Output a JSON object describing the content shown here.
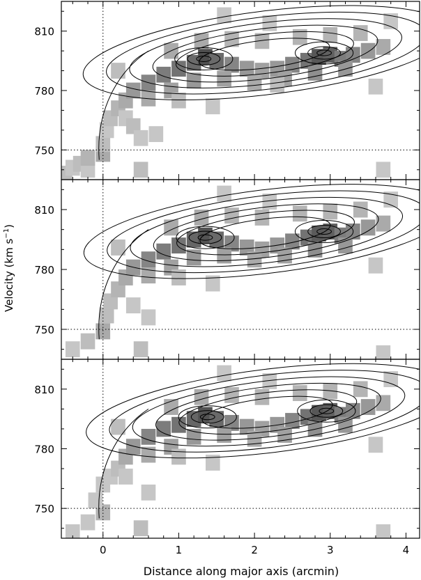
{
  "chart_data": {
    "type": "heatmap",
    "shared_xlabel": "Distance along major axis (arcmin)",
    "shared_ylabel_main": "Velocity (km s",
    "shared_ylabel_sup": "−1",
    "shared_ylabel_close": ")",
    "xlim": [
      -0.55,
      4.18
    ],
    "ylim": [
      735,
      825
    ],
    "x_ticks": [
      0,
      1,
      2,
      3,
      4
    ],
    "x_tick_labels": [
      "0",
      "1",
      "2",
      "3",
      "4"
    ],
    "y_ticks": [
      750,
      780,
      810
    ],
    "y_tick_labels": [
      "750",
      "780",
      "810"
    ],
    "reference_lines": {
      "x": 0,
      "y": 750,
      "style": "dotted"
    },
    "panels": [
      {
        "name": "panel-top",
        "pixels": [
          [
            -0.5,
            738,
            0.25
          ],
          [
            -0.4,
            741,
            0.2
          ],
          [
            -0.3,
            743,
            0.25
          ],
          [
            -0.2,
            740,
            0.2
          ],
          [
            -0.2,
            746,
            0.3
          ],
          [
            0.0,
            748,
            0.35
          ],
          [
            0.0,
            753,
            0.25
          ],
          [
            0.05,
            760,
            0.2
          ],
          [
            0.1,
            766,
            0.25
          ],
          [
            0.2,
            771,
            0.3
          ],
          [
            0.3,
            766,
            0.2
          ],
          [
            0.4,
            762,
            0.25
          ],
          [
            0.5,
            756,
            0.2
          ],
          [
            0.5,
            740,
            0.25
          ],
          [
            0.7,
            758,
            0.2
          ],
          [
            0.3,
            775,
            0.35
          ],
          [
            0.4,
            780,
            0.45
          ],
          [
            0.6,
            784,
            0.55
          ],
          [
            0.8,
            788,
            0.6
          ],
          [
            1.0,
            791,
            0.65
          ],
          [
            1.2,
            794,
            0.7
          ],
          [
            1.35,
            797,
            0.85
          ],
          [
            1.5,
            795,
            0.7
          ],
          [
            1.7,
            793,
            0.55
          ],
          [
            1.9,
            791,
            0.45
          ],
          [
            2.1,
            790,
            0.4
          ],
          [
            2.3,
            791,
            0.45
          ],
          [
            2.5,
            793,
            0.55
          ],
          [
            2.7,
            795,
            0.65
          ],
          [
            2.85,
            797,
            0.8
          ],
          [
            3.0,
            798,
            0.75
          ],
          [
            3.15,
            796,
            0.6
          ],
          [
            3.3,
            798,
            0.55
          ],
          [
            3.5,
            800,
            0.45
          ],
          [
            3.7,
            802,
            0.35
          ],
          [
            0.6,
            776,
            0.35
          ],
          [
            0.9,
            780,
            0.4
          ],
          [
            1.2,
            785,
            0.45
          ],
          [
            1.6,
            786,
            0.4
          ],
          [
            2.0,
            784,
            0.35
          ],
          [
            2.4,
            786,
            0.4
          ],
          [
            2.8,
            789,
            0.5
          ],
          [
            3.2,
            791,
            0.45
          ],
          [
            0.9,
            800,
            0.35
          ],
          [
            1.3,
            805,
            0.35
          ],
          [
            1.7,
            806,
            0.3
          ],
          [
            2.1,
            805,
            0.3
          ],
          [
            2.6,
            807,
            0.3
          ],
          [
            3.0,
            808,
            0.3
          ],
          [
            3.4,
            809,
            0.3
          ],
          [
            3.8,
            815,
            0.2
          ],
          [
            3.6,
            782,
            0.2
          ],
          [
            1.6,
            818,
            0.2
          ],
          [
            2.3,
            783,
            0.25
          ],
          [
            1.0,
            775,
            0.25
          ],
          [
            1.45,
            772,
            0.2
          ],
          [
            3.7,
            740,
            0.2
          ],
          [
            2.2,
            814,
            0.2
          ],
          [
            0.2,
            790,
            0.25
          ]
        ],
        "contour_levels": [
          1,
          2,
          3,
          4,
          5,
          6
        ],
        "peaks": [
          {
            "x": 1.33,
            "y": 796,
            "label": "peak-1"
          },
          {
            "x": 2.92,
            "y": 799,
            "label": "peak-2"
          }
        ]
      },
      {
        "name": "panel-middle",
        "pixels": [
          [
            -0.4,
            740,
            0.2
          ],
          [
            -0.2,
            744,
            0.25
          ],
          [
            0.0,
            749,
            0.35
          ],
          [
            0.05,
            757,
            0.25
          ],
          [
            0.1,
            764,
            0.25
          ],
          [
            0.2,
            770,
            0.3
          ],
          [
            0.4,
            762,
            0.2
          ],
          [
            0.5,
            740,
            0.25
          ],
          [
            0.6,
            756,
            0.2
          ],
          [
            0.3,
            776,
            0.35
          ],
          [
            0.4,
            781,
            0.45
          ],
          [
            0.6,
            785,
            0.55
          ],
          [
            0.8,
            789,
            0.6
          ],
          [
            1.0,
            792,
            0.65
          ],
          [
            1.2,
            795,
            0.72
          ],
          [
            1.35,
            797,
            0.82
          ],
          [
            1.5,
            795,
            0.7
          ],
          [
            1.7,
            793,
            0.55
          ],
          [
            1.9,
            791,
            0.45
          ],
          [
            2.1,
            790,
            0.4
          ],
          [
            2.3,
            792,
            0.45
          ],
          [
            2.5,
            794,
            0.55
          ],
          [
            2.7,
            796,
            0.65
          ],
          [
            2.85,
            798,
            0.78
          ],
          [
            3.0,
            799,
            0.75
          ],
          [
            3.15,
            797,
            0.6
          ],
          [
            3.3,
            799,
            0.55
          ],
          [
            3.5,
            801,
            0.45
          ],
          [
            3.7,
            803,
            0.35
          ],
          [
            0.6,
            777,
            0.35
          ],
          [
            0.9,
            781,
            0.4
          ],
          [
            1.2,
            786,
            0.45
          ],
          [
            1.6,
            787,
            0.4
          ],
          [
            2.0,
            785,
            0.35
          ],
          [
            2.4,
            787,
            0.4
          ],
          [
            2.8,
            790,
            0.5
          ],
          [
            3.2,
            792,
            0.45
          ],
          [
            0.9,
            801,
            0.35
          ],
          [
            1.3,
            806,
            0.35
          ],
          [
            1.7,
            807,
            0.3
          ],
          [
            2.1,
            806,
            0.3
          ],
          [
            2.6,
            808,
            0.3
          ],
          [
            3.0,
            809,
            0.3
          ],
          [
            3.4,
            810,
            0.3
          ],
          [
            3.8,
            815,
            0.2
          ],
          [
            3.6,
            782,
            0.2
          ],
          [
            1.6,
            818,
            0.2
          ],
          [
            1.0,
            776,
            0.25
          ],
          [
            1.45,
            773,
            0.2
          ],
          [
            3.7,
            738,
            0.2
          ],
          [
            2.2,
            814,
            0.2
          ],
          [
            0.2,
            791,
            0.25
          ]
        ],
        "contour_levels": [
          1,
          2,
          3,
          4,
          5,
          6
        ],
        "peaks": [
          {
            "x": 1.35,
            "y": 796,
            "label": "peak-1"
          },
          {
            "x": 2.92,
            "y": 799,
            "label": "peak-2"
          }
        ]
      },
      {
        "name": "panel-bottom",
        "pixels": [
          [
            -0.4,
            738,
            0.2
          ],
          [
            -0.2,
            743,
            0.2
          ],
          [
            0.0,
            748,
            0.3
          ],
          [
            -0.1,
            754,
            0.2
          ],
          [
            0.0,
            762,
            0.2
          ],
          [
            0.1,
            766,
            0.2
          ],
          [
            0.2,
            770,
            0.25
          ],
          [
            0.3,
            766,
            0.2
          ],
          [
            0.5,
            740,
            0.25
          ],
          [
            0.6,
            758,
            0.2
          ],
          [
            0.3,
            776,
            0.35
          ],
          [
            0.4,
            781,
            0.45
          ],
          [
            0.6,
            786,
            0.55
          ],
          [
            0.8,
            790,
            0.6
          ],
          [
            1.0,
            792,
            0.65
          ],
          [
            1.2,
            795,
            0.72
          ],
          [
            1.35,
            797,
            0.82
          ],
          [
            1.5,
            795,
            0.7
          ],
          [
            1.7,
            793,
            0.55
          ],
          [
            1.9,
            791,
            0.45
          ],
          [
            2.1,
            790,
            0.4
          ],
          [
            2.3,
            792,
            0.45
          ],
          [
            2.5,
            794,
            0.55
          ],
          [
            2.7,
            796,
            0.65
          ],
          [
            2.85,
            798,
            0.8
          ],
          [
            3.0,
            799,
            0.75
          ],
          [
            3.15,
            797,
            0.6
          ],
          [
            3.3,
            799,
            0.55
          ],
          [
            3.5,
            801,
            0.45
          ],
          [
            3.7,
            803,
            0.35
          ],
          [
            0.6,
            777,
            0.35
          ],
          [
            0.9,
            781,
            0.4
          ],
          [
            1.2,
            786,
            0.45
          ],
          [
            1.6,
            787,
            0.4
          ],
          [
            2.0,
            785,
            0.35
          ],
          [
            2.4,
            787,
            0.4
          ],
          [
            2.8,
            790,
            0.5
          ],
          [
            3.2,
            792,
            0.45
          ],
          [
            0.9,
            801,
            0.35
          ],
          [
            1.3,
            806,
            0.35
          ],
          [
            1.7,
            807,
            0.3
          ],
          [
            2.1,
            806,
            0.3
          ],
          [
            2.6,
            808,
            0.3
          ],
          [
            3.0,
            809,
            0.3
          ],
          [
            3.4,
            810,
            0.3
          ],
          [
            3.8,
            815,
            0.2
          ],
          [
            3.6,
            782,
            0.2
          ],
          [
            1.6,
            818,
            0.2
          ],
          [
            1.0,
            776,
            0.25
          ],
          [
            1.45,
            773,
            0.2
          ],
          [
            3.7,
            738,
            0.2
          ],
          [
            2.2,
            814,
            0.2
          ],
          [
            0.2,
            791,
            0.25
          ]
        ],
        "contour_levels": [
          1,
          2,
          3,
          4,
          5,
          6
        ],
        "peaks": [
          {
            "x": 1.38,
            "y": 796,
            "label": "peak-1"
          },
          {
            "x": 2.95,
            "y": 799,
            "label": "peak-2"
          }
        ]
      }
    ]
  }
}
